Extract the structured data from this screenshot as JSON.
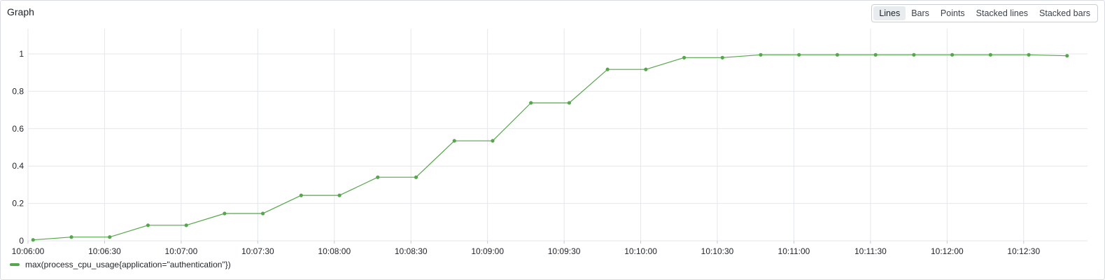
{
  "panel": {
    "title": "Graph",
    "chart_modes": [
      "Lines",
      "Bars",
      "Points",
      "Stacked lines",
      "Stacked bars"
    ],
    "active_mode": "Lines"
  },
  "colors": {
    "series": "#56a64b",
    "grid": "#e4e7eb",
    "tick_text": "#1f2328"
  },
  "chart_data": {
    "type": "line",
    "title": "",
    "xlabel": "",
    "ylabel": "",
    "ylim": [
      0,
      1
    ],
    "xlim": [
      "10:06:00",
      "10:12:55"
    ],
    "grid": true,
    "legend_placement": "bottom-left",
    "yticks": [
      "0",
      "0.2",
      "0.4",
      "0.6",
      "0.8",
      "1"
    ],
    "xticks": [
      "10:06:00",
      "10:06:30",
      "10:07:00",
      "10:07:30",
      "10:08:00",
      "10:08:30",
      "10:09:00",
      "10:09:30",
      "10:10:00",
      "10:10:30",
      "10:11:00",
      "10:11:30",
      "10:12:00",
      "10:12:30"
    ],
    "x": [
      "10:06:02",
      "10:06:17",
      "10:06:32",
      "10:06:47",
      "10:07:02",
      "10:07:17",
      "10:07:32",
      "10:07:47",
      "10:08:02",
      "10:08:17",
      "10:08:32",
      "10:08:47",
      "10:09:02",
      "10:09:17",
      "10:09:32",
      "10:09:47",
      "10:10:02",
      "10:10:17",
      "10:10:32",
      "10:10:47",
      "10:11:02",
      "10:11:17",
      "10:11:32",
      "10:11:47",
      "10:12:02",
      "10:12:17",
      "10:12:32",
      "10:12:47"
    ],
    "series": [
      {
        "name": "max(process_cpu_usage{application=\"authentication\"})",
        "values": [
          0.005,
          0.02,
          0.02,
          0.083,
          0.083,
          0.146,
          0.146,
          0.243,
          0.243,
          0.34,
          0.34,
          0.535,
          0.535,
          0.738,
          0.738,
          0.917,
          0.917,
          0.98,
          0.98,
          0.995,
          0.995,
          0.995,
          0.995,
          0.995,
          0.995,
          0.995,
          0.995,
          0.99
        ]
      }
    ]
  }
}
